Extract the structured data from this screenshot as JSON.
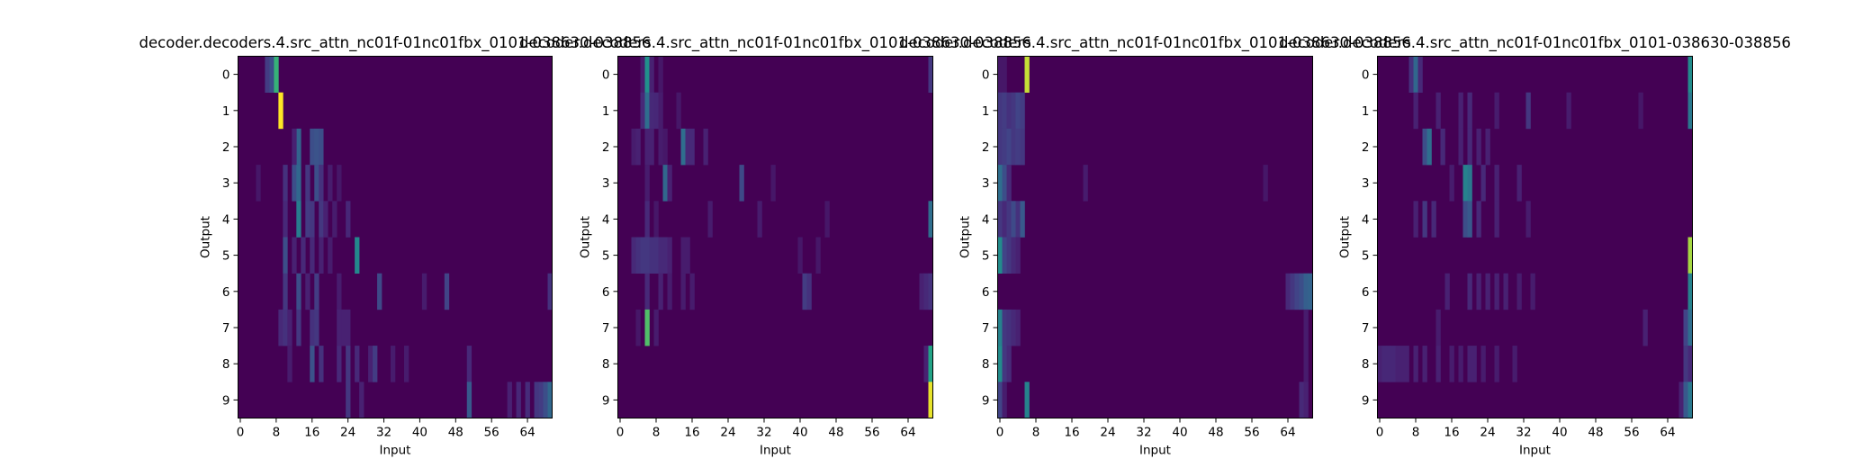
{
  "chart_data": [
    {
      "type": "heatmap",
      "title": "decoder.decoders.4.src_attn_nc01f-01nc01fbx_0101-038630-038856",
      "xlabel": "Input",
      "ylabel": "Output",
      "x_ticks": [
        0,
        8,
        16,
        24,
        32,
        40,
        48,
        56,
        64
      ],
      "y_ticks": [
        0,
        1,
        2,
        3,
        4,
        5,
        6,
        7,
        8,
        9
      ],
      "n_input": 70,
      "n_output": 10,
      "colormap": "viridis",
      "value_range": [
        0,
        1
      ],
      "background": 0.0,
      "cells": [
        [
          0,
          6,
          0.22
        ],
        [
          0,
          7,
          0.3
        ],
        [
          0,
          8,
          0.78
        ],
        [
          1,
          9,
          1.0
        ],
        [
          2,
          13,
          0.4
        ],
        [
          2,
          16,
          0.3
        ],
        [
          2,
          17,
          0.32
        ],
        [
          2,
          18,
          0.3
        ],
        [
          2,
          12,
          0.12
        ],
        [
          3,
          10,
          0.18
        ],
        [
          3,
          12,
          0.3
        ],
        [
          3,
          13,
          0.42
        ],
        [
          3,
          15,
          0.2
        ],
        [
          3,
          17,
          0.3
        ],
        [
          3,
          18,
          0.18
        ],
        [
          3,
          4,
          0.08
        ],
        [
          3,
          20,
          0.1
        ],
        [
          3,
          22,
          0.08
        ],
        [
          4,
          10,
          0.15
        ],
        [
          4,
          13,
          0.52
        ],
        [
          4,
          15,
          0.22
        ],
        [
          4,
          16,
          0.2
        ],
        [
          4,
          18,
          0.2
        ],
        [
          4,
          19,
          0.12
        ],
        [
          4,
          21,
          0.1
        ],
        [
          4,
          24,
          0.14
        ],
        [
          5,
          10,
          0.3
        ],
        [
          5,
          12,
          0.12
        ],
        [
          5,
          14,
          0.15
        ],
        [
          5,
          16,
          0.15
        ],
        [
          5,
          18,
          0.12
        ],
        [
          5,
          20,
          0.1
        ],
        [
          5,
          26,
          0.58
        ],
        [
          6,
          10,
          0.2
        ],
        [
          6,
          13,
          0.3
        ],
        [
          6,
          15,
          0.12
        ],
        [
          6,
          17,
          0.22
        ],
        [
          6,
          22,
          0.1
        ],
        [
          6,
          31,
          0.28
        ],
        [
          6,
          41,
          0.1
        ],
        [
          6,
          46,
          0.25
        ],
        [
          6,
          69,
          0.18
        ],
        [
          7,
          9,
          0.15
        ],
        [
          7,
          10,
          0.18
        ],
        [
          7,
          11,
          0.12
        ],
        [
          7,
          13,
          0.2
        ],
        [
          7,
          16,
          0.18
        ],
        [
          7,
          17,
          0.2
        ],
        [
          7,
          22,
          0.12
        ],
        [
          7,
          23,
          0.12
        ],
        [
          7,
          24,
          0.12
        ],
        [
          8,
          11,
          0.1
        ],
        [
          8,
          16,
          0.32
        ],
        [
          8,
          18,
          0.18
        ],
        [
          8,
          22,
          0.15
        ],
        [
          8,
          24,
          0.2
        ],
        [
          8,
          26,
          0.15
        ],
        [
          8,
          29,
          0.12
        ],
        [
          8,
          30,
          0.22
        ],
        [
          8,
          34,
          0.1
        ],
        [
          8,
          37,
          0.1
        ],
        [
          8,
          51,
          0.15
        ],
        [
          9,
          24,
          0.2
        ],
        [
          9,
          27,
          0.12
        ],
        [
          9,
          51,
          0.35
        ],
        [
          9,
          60,
          0.12
        ],
        [
          9,
          62,
          0.14
        ],
        [
          9,
          64,
          0.16
        ],
        [
          9,
          66,
          0.2
        ],
        [
          9,
          67,
          0.22
        ],
        [
          9,
          68,
          0.3
        ],
        [
          9,
          69,
          0.42
        ]
      ]
    },
    {
      "type": "heatmap",
      "title": "decoder.decoders.4.src_attn_nc01f-01nc01fbx_0101-038630-038856",
      "xlabel": "Input",
      "ylabel": "Output",
      "x_ticks": [
        0,
        8,
        16,
        24,
        32,
        40,
        48,
        56,
        64
      ],
      "y_ticks": [
        0,
        1,
        2,
        3,
        4,
        5,
        6,
        7,
        8,
        9
      ],
      "n_input": 70,
      "n_output": 10,
      "colormap": "viridis",
      "value_range": [
        0,
        1
      ],
      "background": 0.0,
      "cells": [
        [
          0,
          5,
          0.1
        ],
        [
          0,
          6,
          0.62
        ],
        [
          0,
          7,
          0.12
        ],
        [
          0,
          9,
          0.08
        ],
        [
          0,
          69,
          0.2
        ],
        [
          1,
          5,
          0.15
        ],
        [
          1,
          6,
          0.45
        ],
        [
          1,
          7,
          0.15
        ],
        [
          1,
          8,
          0.14
        ],
        [
          1,
          9,
          0.1
        ],
        [
          1,
          13,
          0.08
        ],
        [
          2,
          3,
          0.1
        ],
        [
          2,
          4,
          0.12
        ],
        [
          2,
          6,
          0.12
        ],
        [
          2,
          7,
          0.12
        ],
        [
          2,
          9,
          0.1
        ],
        [
          2,
          10,
          0.08
        ],
        [
          2,
          14,
          0.45
        ],
        [
          2,
          15,
          0.15
        ],
        [
          2,
          16,
          0.15
        ],
        [
          2,
          19,
          0.12
        ],
        [
          3,
          6,
          0.1
        ],
        [
          3,
          10,
          0.42
        ],
        [
          3,
          11,
          0.12
        ],
        [
          3,
          27,
          0.28
        ],
        [
          3,
          34,
          0.08
        ],
        [
          4,
          6,
          0.15
        ],
        [
          4,
          8,
          0.08
        ],
        [
          4,
          20,
          0.1
        ],
        [
          4,
          31,
          0.1
        ],
        [
          4,
          46,
          0.08
        ],
        [
          4,
          69,
          0.45
        ],
        [
          5,
          3,
          0.15
        ],
        [
          5,
          4,
          0.18
        ],
        [
          5,
          5,
          0.2
        ],
        [
          5,
          6,
          0.2
        ],
        [
          5,
          7,
          0.18
        ],
        [
          5,
          8,
          0.18
        ],
        [
          5,
          9,
          0.15
        ],
        [
          5,
          10,
          0.15
        ],
        [
          5,
          11,
          0.12
        ],
        [
          5,
          14,
          0.1
        ],
        [
          5,
          15,
          0.1
        ],
        [
          5,
          40,
          0.08
        ],
        [
          5,
          44,
          0.08
        ],
        [
          6,
          6,
          0.15
        ],
        [
          6,
          9,
          0.12
        ],
        [
          6,
          11,
          0.1
        ],
        [
          6,
          14,
          0.1
        ],
        [
          6,
          16,
          0.1
        ],
        [
          6,
          41,
          0.22
        ],
        [
          6,
          42,
          0.18
        ],
        [
          6,
          67,
          0.12
        ],
        [
          6,
          68,
          0.15
        ],
        [
          6,
          69,
          0.18
        ],
        [
          7,
          4,
          0.08
        ],
        [
          7,
          6,
          0.82
        ],
        [
          7,
          8,
          0.1
        ],
        [
          8,
          68,
          0.12
        ],
        [
          8,
          69,
          0.72
        ],
        [
          9,
          69,
          0.98
        ]
      ]
    },
    {
      "type": "heatmap",
      "title": "decoder.decoders.4.src_attn_nc01f-01nc01fbx_0101-038630-038856",
      "xlabel": "Input",
      "ylabel": "Output",
      "x_ticks": [
        0,
        8,
        16,
        24,
        32,
        40,
        48,
        56,
        64
      ],
      "y_ticks": [
        0,
        1,
        2,
        3,
        4,
        5,
        6,
        7,
        8,
        9
      ],
      "n_input": 70,
      "n_output": 10,
      "colormap": "viridis",
      "value_range": [
        0,
        1
      ],
      "background": 0.0,
      "cells": [
        [
          0,
          6,
          0.95
        ],
        [
          0,
          0,
          0.08
        ],
        [
          0,
          1,
          0.08
        ],
        [
          1,
          0,
          0.2
        ],
        [
          1,
          1,
          0.22
        ],
        [
          1,
          2,
          0.18
        ],
        [
          1,
          3,
          0.2
        ],
        [
          1,
          4,
          0.25
        ],
        [
          1,
          5,
          0.22
        ],
        [
          2,
          0,
          0.2
        ],
        [
          2,
          1,
          0.22
        ],
        [
          2,
          2,
          0.25
        ],
        [
          2,
          3,
          0.2
        ],
        [
          2,
          4,
          0.22
        ],
        [
          2,
          5,
          0.2
        ],
        [
          3,
          0,
          0.45
        ],
        [
          3,
          1,
          0.3
        ],
        [
          3,
          2,
          0.15
        ],
        [
          3,
          19,
          0.1
        ],
        [
          3,
          59,
          0.08
        ],
        [
          4,
          0,
          0.2
        ],
        [
          4,
          1,
          0.15
        ],
        [
          4,
          2,
          0.2
        ],
        [
          4,
          3,
          0.28
        ],
        [
          4,
          4,
          0.18
        ],
        [
          4,
          5,
          0.35
        ],
        [
          5,
          0,
          0.6
        ],
        [
          5,
          1,
          0.25
        ],
        [
          5,
          2,
          0.2
        ],
        [
          5,
          3,
          0.15
        ],
        [
          5,
          4,
          0.12
        ],
        [
          6,
          64,
          0.15
        ],
        [
          6,
          65,
          0.2
        ],
        [
          6,
          66,
          0.25
        ],
        [
          6,
          67,
          0.3
        ],
        [
          6,
          68,
          0.38
        ],
        [
          6,
          69,
          0.4
        ],
        [
          7,
          0,
          0.55
        ],
        [
          7,
          1,
          0.2
        ],
        [
          7,
          2,
          0.18
        ],
        [
          7,
          3,
          0.15
        ],
        [
          7,
          4,
          0.12
        ],
        [
          7,
          68,
          0.1
        ],
        [
          8,
          0,
          0.6
        ],
        [
          8,
          1,
          0.2
        ],
        [
          8,
          2,
          0.15
        ],
        [
          8,
          68,
          0.1
        ],
        [
          9,
          0,
          0.25
        ],
        [
          9,
          1,
          0.1
        ],
        [
          9,
          6,
          0.55
        ],
        [
          9,
          67,
          0.15
        ],
        [
          9,
          68,
          0.12
        ]
      ]
    },
    {
      "type": "heatmap",
      "title": "decoder.decoders.4.src_attn_nc01f-01nc01fbx_0101-038630-038856",
      "xlabel": "Input",
      "ylabel": "Output",
      "x_ticks": [
        0,
        8,
        16,
        24,
        32,
        40,
        48,
        56,
        64
      ],
      "y_ticks": [
        0,
        1,
        2,
        3,
        4,
        5,
        6,
        7,
        8,
        9
      ],
      "n_input": 70,
      "n_output": 10,
      "colormap": "viridis",
      "value_range": [
        0,
        1
      ],
      "background": 0.0,
      "cells": [
        [
          0,
          7,
          0.18
        ],
        [
          0,
          8,
          0.42
        ],
        [
          0,
          9,
          0.15
        ],
        [
          0,
          69,
          0.6
        ],
        [
          1,
          8,
          0.12
        ],
        [
          1,
          13,
          0.12
        ],
        [
          1,
          18,
          0.12
        ],
        [
          1,
          20,
          0.15
        ],
        [
          1,
          26,
          0.1
        ],
        [
          1,
          33,
          0.2
        ],
        [
          1,
          42,
          0.1
        ],
        [
          1,
          58,
          0.08
        ],
        [
          1,
          69,
          0.5
        ],
        [
          2,
          10,
          0.3
        ],
        [
          2,
          11,
          0.45
        ],
        [
          2,
          14,
          0.15
        ],
        [
          2,
          18,
          0.12
        ],
        [
          2,
          20,
          0.15
        ],
        [
          2,
          22,
          0.12
        ],
        [
          2,
          24,
          0.12
        ],
        [
          3,
          16,
          0.1
        ],
        [
          3,
          19,
          0.55
        ],
        [
          3,
          20,
          0.5
        ],
        [
          3,
          23,
          0.15
        ],
        [
          3,
          26,
          0.12
        ],
        [
          3,
          31,
          0.12
        ],
        [
          4,
          8,
          0.12
        ],
        [
          4,
          10,
          0.2
        ],
        [
          4,
          12,
          0.15
        ],
        [
          4,
          19,
          0.3
        ],
        [
          4,
          20,
          0.35
        ],
        [
          4,
          22,
          0.15
        ],
        [
          4,
          26,
          0.12
        ],
        [
          4,
          33,
          0.1
        ],
        [
          5,
          69,
          0.92
        ],
        [
          6,
          15,
          0.12
        ],
        [
          6,
          20,
          0.15
        ],
        [
          6,
          22,
          0.12
        ],
        [
          6,
          24,
          0.12
        ],
        [
          6,
          26,
          0.12
        ],
        [
          6,
          28,
          0.12
        ],
        [
          6,
          31,
          0.1
        ],
        [
          6,
          34,
          0.1
        ],
        [
          6,
          69,
          0.55
        ],
        [
          7,
          13,
          0.1
        ],
        [
          7,
          59,
          0.12
        ],
        [
          7,
          68,
          0.25
        ],
        [
          7,
          69,
          0.45
        ],
        [
          8,
          0,
          0.12
        ],
        [
          8,
          1,
          0.14
        ],
        [
          8,
          2,
          0.14
        ],
        [
          8,
          3,
          0.14
        ],
        [
          8,
          4,
          0.12
        ],
        [
          8,
          5,
          0.12
        ],
        [
          8,
          6,
          0.12
        ],
        [
          8,
          8,
          0.12
        ],
        [
          8,
          10,
          0.12
        ],
        [
          8,
          13,
          0.12
        ],
        [
          8,
          16,
          0.1
        ],
        [
          8,
          18,
          0.1
        ],
        [
          8,
          20,
          0.12
        ],
        [
          8,
          21,
          0.12
        ],
        [
          8,
          23,
          0.1
        ],
        [
          8,
          26,
          0.1
        ],
        [
          8,
          30,
          0.1
        ],
        [
          8,
          68,
          0.2
        ],
        [
          8,
          69,
          0.15
        ],
        [
          9,
          67,
          0.12
        ],
        [
          9,
          68,
          0.35
        ],
        [
          9,
          69,
          0.5
        ]
      ]
    }
  ]
}
